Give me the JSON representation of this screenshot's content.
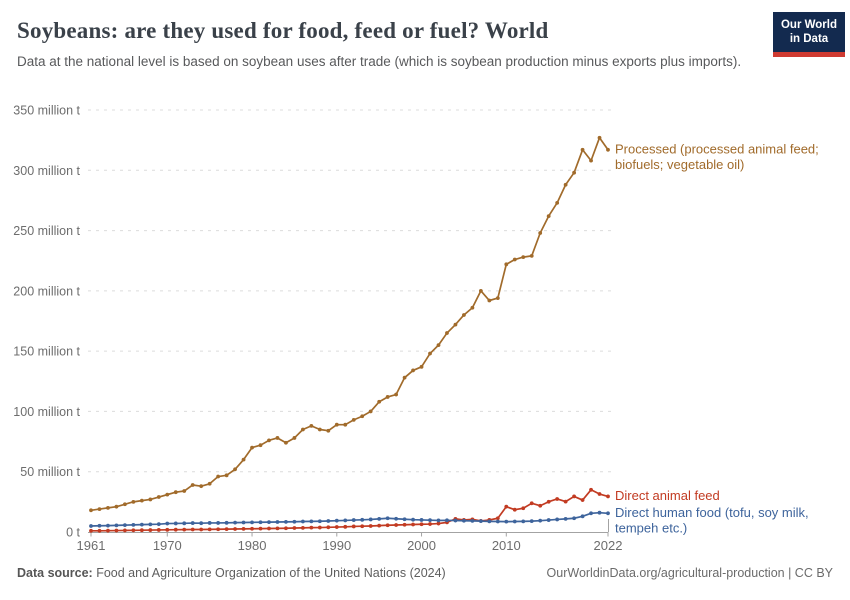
{
  "header": {
    "title": "Soybeans: are they used for food, feed or fuel? World",
    "subtitle": "Data at the national level is based on soybean uses after trade (which is soybean production minus exports plus imports).",
    "logo": {
      "line1": "Our World",
      "line2": "in Data",
      "bg_color": "#132a4f",
      "stripe_color": "#cf3a31"
    }
  },
  "chart_data": {
    "type": "line",
    "title": "Soybeans: are they used for food, feed or fuel? World",
    "xlabel": "",
    "ylabel": "million t",
    "unit": "million t",
    "grid": "horizontal-dashed",
    "legend_position": "right-of-line-ends",
    "xlim": [
      1961,
      2022
    ],
    "ylim": [
      0,
      350
    ],
    "x_ticks": [
      1961,
      1970,
      1980,
      1990,
      2000,
      2010,
      2022
    ],
    "y_ticks": [
      {
        "v": 0,
        "label": "0 t"
      },
      {
        "v": 50,
        "label": "50 million t"
      },
      {
        "v": 100,
        "label": "100 million t"
      },
      {
        "v": 150,
        "label": "150 million t"
      },
      {
        "v": 200,
        "label": "200 million t"
      },
      {
        "v": 250,
        "label": "250 million t"
      },
      {
        "v": 300,
        "label": "300 million t"
      },
      {
        "v": 350,
        "label": "350 million t"
      }
    ],
    "x": [
      1961,
      1962,
      1963,
      1964,
      1965,
      1966,
      1967,
      1968,
      1969,
      1970,
      1971,
      1972,
      1973,
      1974,
      1975,
      1976,
      1977,
      1978,
      1979,
      1980,
      1981,
      1982,
      1983,
      1984,
      1985,
      1986,
      1987,
      1988,
      1989,
      1990,
      1991,
      1992,
      1993,
      1994,
      1995,
      1996,
      1997,
      1998,
      1999,
      2000,
      2001,
      2002,
      2003,
      2004,
      2005,
      2006,
      2007,
      2008,
      2009,
      2010,
      2011,
      2012,
      2013,
      2014,
      2015,
      2016,
      2017,
      2018,
      2019,
      2020,
      2021,
      2022
    ],
    "series": [
      {
        "id": "processed",
        "name": "Processed (processed animal feed; biofuels; vegetable oil)",
        "label_lines": [
          "Processed (processed animal feed;",
          "biofuels; vegetable oil)"
        ],
        "color": "#A16B2B",
        "values": [
          18,
          19,
          20,
          21,
          23,
          25,
          26,
          27,
          29,
          31,
          33,
          34,
          39,
          38,
          40,
          46,
          47,
          52,
          60,
          70,
          72,
          76,
          78,
          74,
          78,
          85,
          88,
          85,
          84,
          89,
          89,
          93,
          96,
          100,
          108,
          112,
          114,
          128,
          134,
          137,
          148,
          155,
          165,
          172,
          180,
          186,
          200,
          192,
          194,
          222,
          226,
          228,
          229,
          248,
          262,
          273,
          288,
          298,
          317,
          308,
          327,
          317
        ]
      },
      {
        "id": "direct-animal-feed",
        "name": "Direct animal feed",
        "label_lines": [
          "Direct animal feed"
        ],
        "color": "#C23B22",
        "values": [
          1,
          1,
          1.1,
          1.2,
          1.3,
          1.4,
          1.5,
          1.6,
          1.7,
          1.8,
          1.9,
          2,
          2.1,
          2.1,
          2.2,
          2.3,
          2.4,
          2.5,
          2.6,
          2.7,
          2.8,
          2.9,
          3,
          3.1,
          3.3,
          3.4,
          3.6,
          3.7,
          3.9,
          4.1,
          4.3,
          4.6,
          4.8,
          5,
          5.3,
          5.6,
          5.8,
          6,
          6.2,
          6.4,
          6.6,
          7,
          8,
          10.9,
          10,
          10.5,
          9.2,
          10,
          11.4,
          21,
          18.5,
          19.7,
          23.8,
          21.8,
          25.1,
          27.4,
          25.2,
          29.5,
          26.5,
          35,
          31.5,
          29.5
        ]
      },
      {
        "id": "direct-human-food",
        "name": "Direct human food (tofu, soy milk, tempeh etc.)",
        "label_lines": [
          "Direct human food (tofu, soy milk,",
          "tempeh etc.)"
        ],
        "color": "#3E649C",
        "values": [
          5,
          5.2,
          5.3,
          5.5,
          5.7,
          5.9,
          6.1,
          6.3,
          6.5,
          7,
          7.1,
          7.2,
          7.4,
          7.3,
          7.5,
          7.5,
          7.6,
          7.8,
          7.9,
          8,
          8.1,
          8.2,
          8.3,
          8.4,
          8.5,
          8.7,
          8.8,
          8.9,
          9.1,
          9.4,
          9.6,
          9.9,
          10.1,
          10.4,
          10.9,
          11.4,
          11,
          10.6,
          10.2,
          10,
          9.8,
          9.6,
          9.7,
          9.5,
          9.3,
          9.2,
          9,
          8.8,
          8.7,
          8.6,
          8.7,
          8.8,
          9,
          9.4,
          9.9,
          10.4,
          10.9,
          11.4,
          13,
          15.5,
          16,
          15.5
        ]
      }
    ],
    "axis_color": "#a3a3a3",
    "grid_color": "#dcdcdc",
    "tick_label_color": "#6d6d6d"
  },
  "footer": {
    "source_label": "Data source:",
    "source_text": " Food and Agriculture Organization of the United Nations (2024)",
    "attribution": "OurWorldinData.org/agricultural-production | CC BY"
  }
}
